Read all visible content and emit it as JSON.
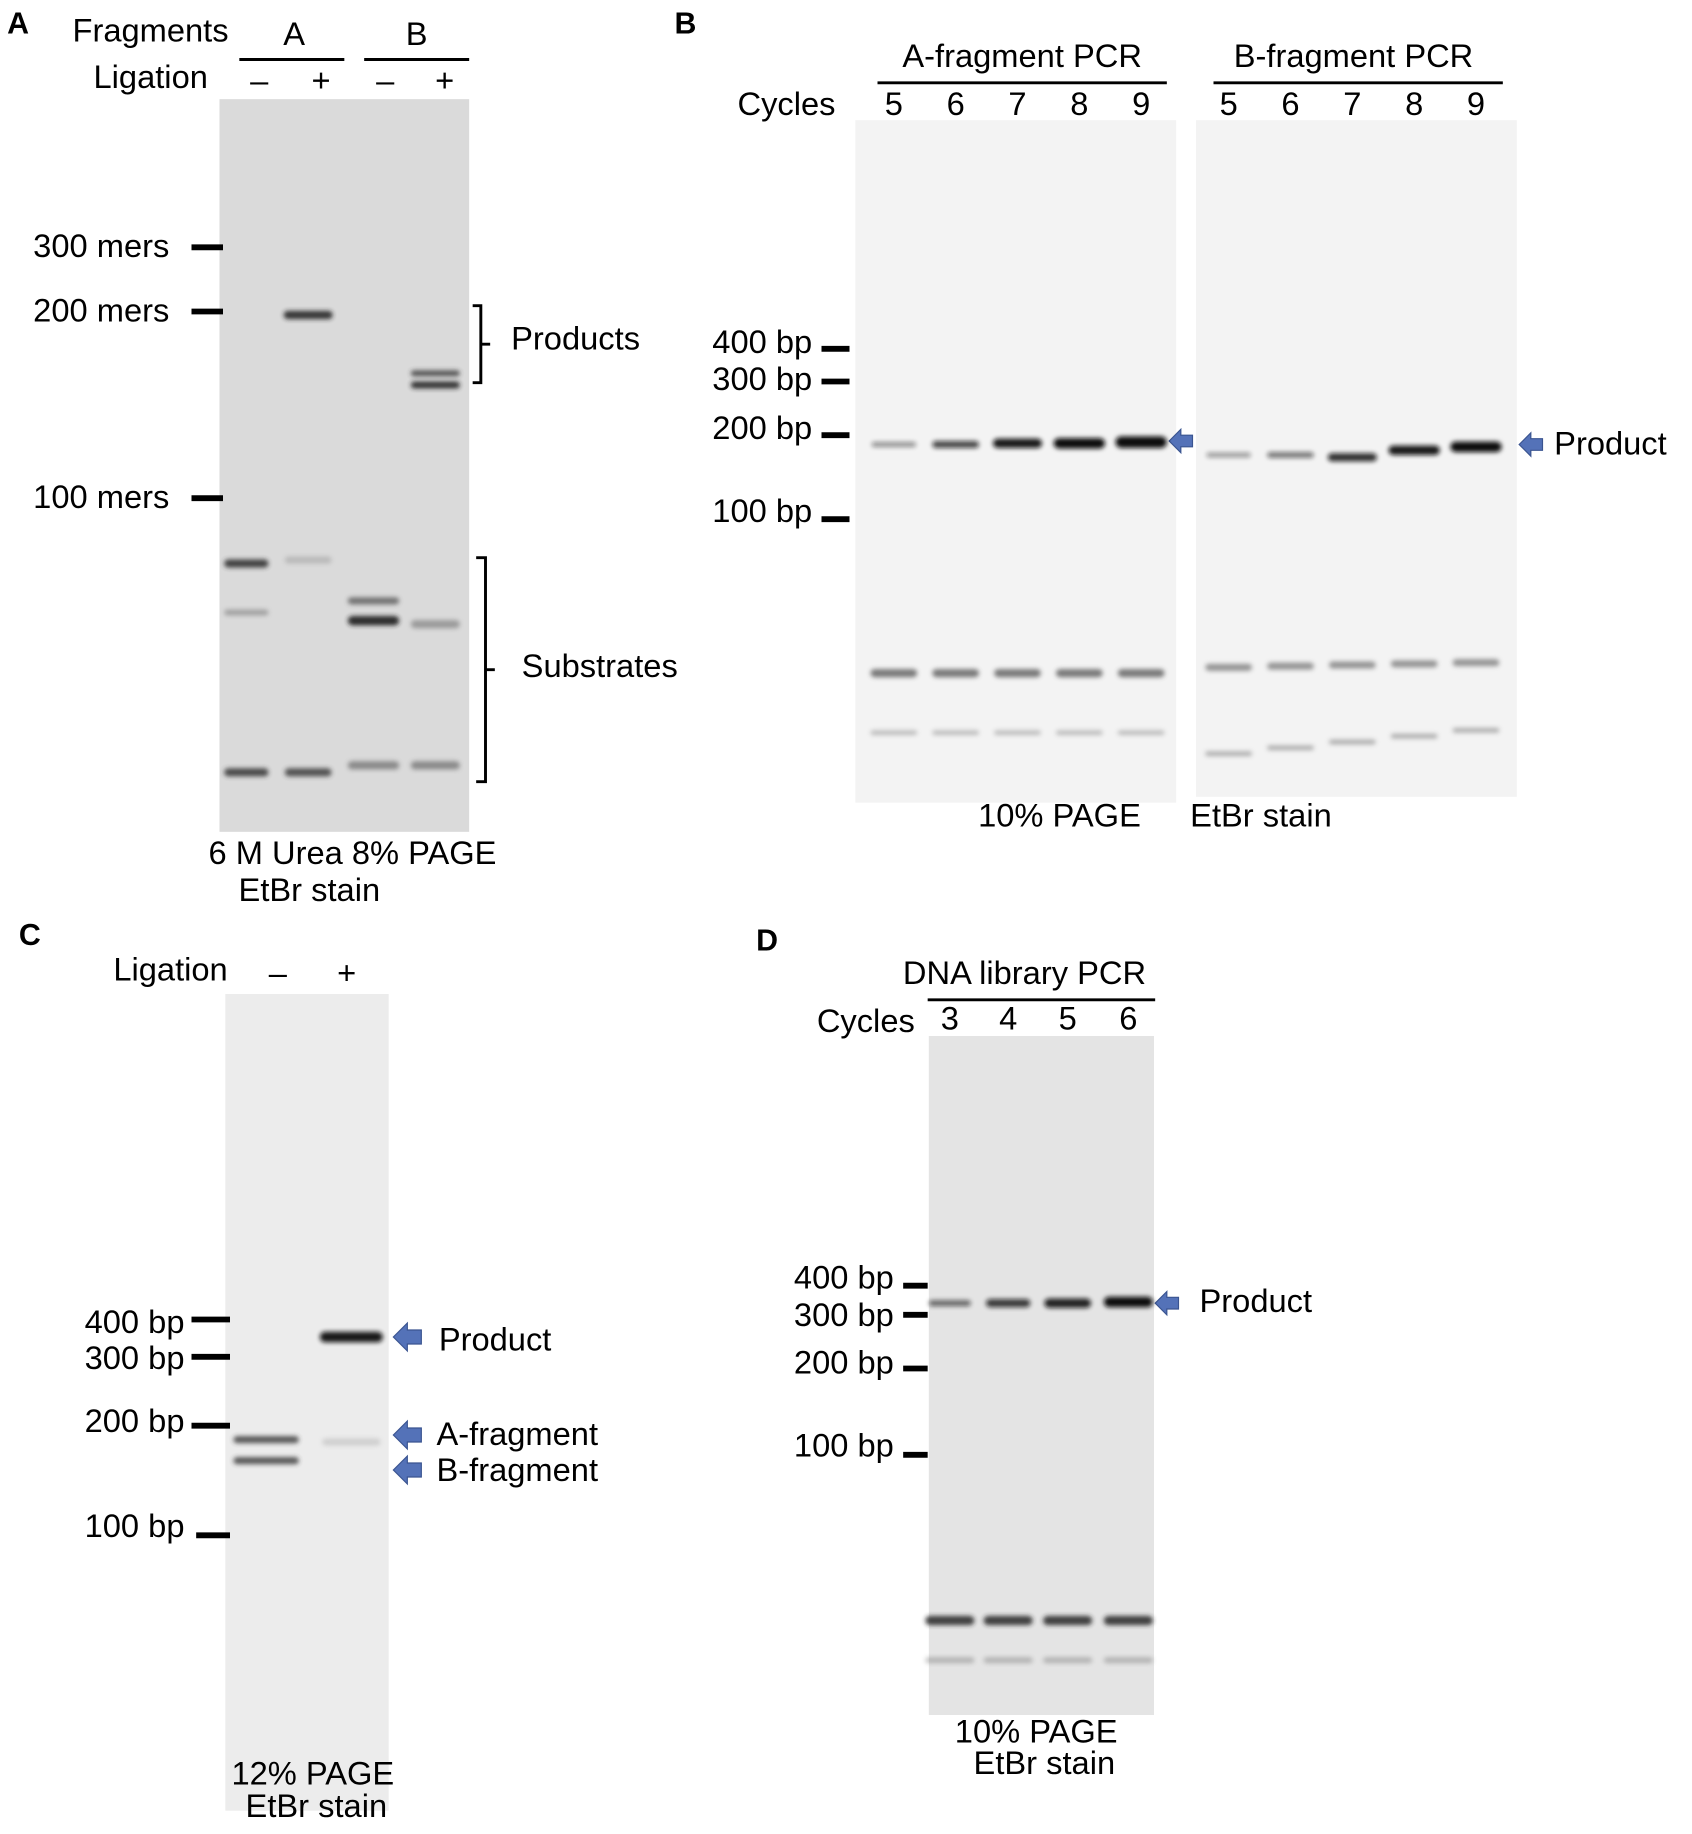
{
  "panels": [
    {
      "letter": "A",
      "fragments_label": "Fragments",
      "ligation_label": "Ligation",
      "groups": [
        "A",
        "B"
      ],
      "lanes": [
        "–",
        "+",
        "–",
        "+"
      ],
      "markers": [
        "300 mers",
        "200 mers",
        "100 mers"
      ],
      "annotations": [
        "Products",
        "Substrates"
      ],
      "caption": [
        "6 M Urea 8% PAGE",
        "EtBr stain"
      ]
    },
    {
      "letter": "B",
      "groups": [
        "A-fragment PCR",
        "B-fragment PCR"
      ],
      "cycles_label": "Cycles",
      "cycles": [
        5,
        6,
        7,
        8,
        9,
        5,
        6,
        7,
        8,
        9
      ],
      "markers": [
        "400 bp",
        "300 bp",
        "200 bp",
        "100 bp"
      ],
      "annotation": "Product",
      "caption": [
        "10% PAGE",
        "EtBr stain"
      ]
    },
    {
      "letter": "C",
      "ligation_label": "Ligation",
      "lanes": [
        "–",
        "+"
      ],
      "markers": [
        "400 bp",
        "300 bp",
        "200 bp",
        "100 bp"
      ],
      "annotations": [
        "Product",
        "A-fragment",
        "B-fragment"
      ],
      "caption": [
        "12% PAGE",
        "EtBr stain"
      ]
    },
    {
      "letter": "D",
      "group": "DNA library PCR",
      "cycles_label": "Cycles",
      "cycles": [
        3,
        4,
        5,
        6
      ],
      "markers": [
        "400 bp",
        "300 bp",
        "200 bp",
        "100 bp"
      ],
      "annotation": "Product",
      "caption": [
        "10% PAGE",
        "EtBr stain"
      ]
    }
  ]
}
